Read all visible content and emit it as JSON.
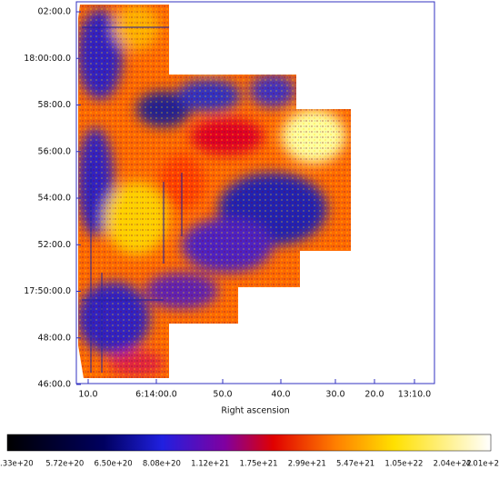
{
  "image_axes": {
    "y_tick_labels": [
      "02:00.0",
      "18:00:00.0",
      "58:00.0",
      "56:00.0",
      "54:00.0",
      "52:00.0",
      "17:50:00.0",
      "48:00.0",
      "46:00.0"
    ],
    "x_tick_labels": [
      "10.0",
      "6:14:00.0",
      "50.0",
      "40.0",
      "30.0",
      "20.0",
      "13:10.0"
    ],
    "x_label": "Right ascension"
  },
  "colorbar": {
    "labels": [
      ".33e+20",
      "5.72e+20",
      "6.50e+20",
      "8.08e+20",
      "1.12e+21",
      "1.75e+21",
      "2.99e+21",
      "5.47e+21",
      "1.05e+22",
      "2.04e+22",
      "4.01e+2"
    ]
  }
}
